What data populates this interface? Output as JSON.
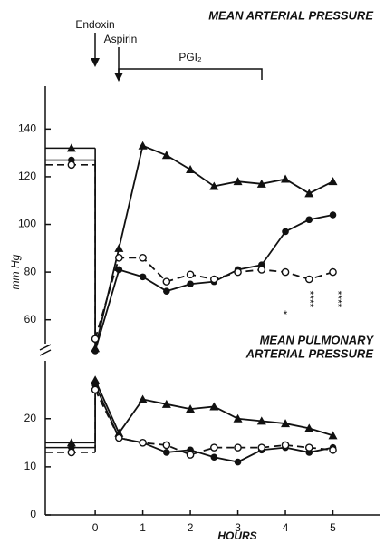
{
  "chart_data": [
    {
      "type": "line",
      "title": "MEAN ARTERIAL PRESSURE",
      "ylabel": "mm Hg",
      "annotations": [
        "Endoxin",
        "Aspirin",
        "PGI₂",
        "*",
        "****",
        "****"
      ],
      "x": [
        -0.5,
        0,
        0.5,
        1,
        1.5,
        2,
        2.5,
        3,
        3.5,
        4,
        4.5,
        5
      ],
      "xlim": [
        -1.05,
        6
      ],
      "ylim": [
        50,
        158
      ],
      "yticks": [
        60,
        80,
        100,
        120,
        140
      ],
      "series": [
        {
          "color": "#111111",
          "marker": "triangle",
          "dash": "solid",
          "values": [
            132,
            48,
            90,
            133,
            129,
            123,
            116,
            118,
            117,
            119,
            113,
            118
          ]
        },
        {
          "color": "#111111",
          "marker": "circle",
          "dash": "solid",
          "values": [
            127,
            47,
            81,
            78,
            72,
            75,
            76,
            81,
            83,
            97,
            102,
            104
          ]
        },
        {
          "color": "#111111",
          "marker": "open-circle",
          "dash": "dashed",
          "values": [
            125,
            52,
            86,
            86,
            76,
            79,
            77,
            80,
            81,
            80,
            77,
            80
          ]
        }
      ]
    },
    {
      "type": "line",
      "title": [
        "MEAN PULMONARY",
        "ARTERIAL PRESSURE"
      ],
      "xlabel": "HOURS",
      "x": [
        -0.5,
        0,
        0.5,
        1,
        1.5,
        2,
        2.5,
        3,
        3.5,
        4,
        4.5,
        5
      ],
      "xlim": [
        -1.05,
        6
      ],
      "xticks": [
        0,
        1,
        2,
        3,
        4,
        5
      ],
      "ylim": [
        0,
        32
      ],
      "yticks": [
        0,
        10,
        20
      ],
      "series": [
        {
          "color": "#111111",
          "marker": "triangle",
          "dash": "solid",
          "values": [
            15,
            28,
            17,
            24,
            23,
            22,
            22.5,
            20,
            19.5,
            19,
            18,
            16.5
          ]
        },
        {
          "color": "#111111",
          "marker": "circle",
          "dash": "solid",
          "values": [
            14,
            27,
            16,
            15,
            13,
            13.5,
            12,
            11,
            13.5,
            14,
            13,
            14
          ]
        },
        {
          "color": "#111111",
          "marker": "open-circle",
          "dash": "dashed",
          "values": [
            13,
            26,
            16,
            15,
            14.5,
            12.5,
            14,
            14,
            14,
            14.5,
            14,
            13.5
          ]
        }
      ]
    }
  ]
}
